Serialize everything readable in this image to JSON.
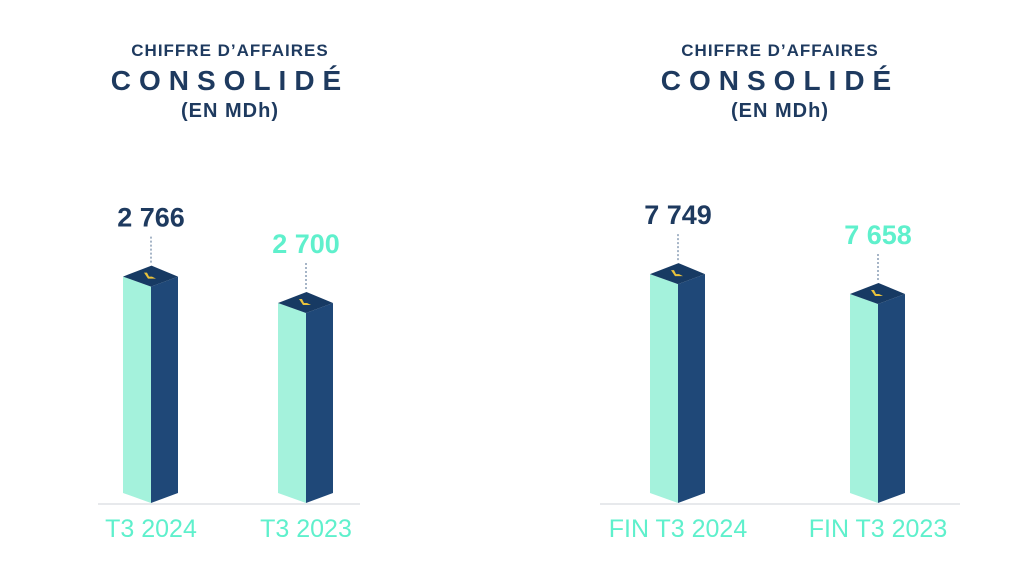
{
  "colors": {
    "front": "#a4f2dc",
    "side": "#1f4878",
    "top": "#173a63",
    "logo": "#e9c23b",
    "value_primary": "#1e3a5f",
    "value_secondary": "#5ff0cc",
    "category_label": "#5ff0cc",
    "title": "#1e3a5f",
    "baseline": "#cfd3d8"
  },
  "chart_data": [
    {
      "type": "bar",
      "title_line1": "CHIFFRE D’AFFAIRES",
      "title_line2": "CONSOLIDÉ",
      "title_line3": "(EN MDh)",
      "categories": [
        "T3 2024",
        "T3 2023"
      ],
      "values": [
        2766,
        2700
      ],
      "value_labels": [
        "2 766",
        "2 700"
      ],
      "ylim": [
        2200,
        2800
      ],
      "grid": false,
      "legend": "none"
    },
    {
      "type": "bar",
      "title_line1": "CHIFFRE D’AFFAIRES",
      "title_line2": "CONSOLIDÉ",
      "title_line3": "(EN MDh)",
      "categories": [
        "FIN T3 2024",
        "FIN T3 2023"
      ],
      "values": [
        7749,
        7658
      ],
      "value_labels": [
        "7 749",
        "7 658"
      ],
      "ylim": [
        6700,
        7800
      ],
      "grid": false,
      "legend": "none"
    }
  ]
}
